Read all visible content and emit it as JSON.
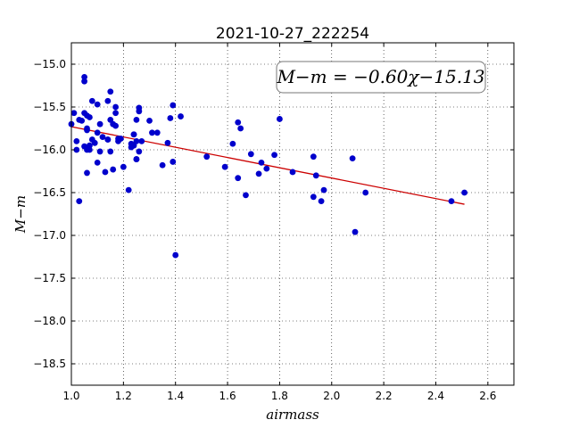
{
  "chart_data": {
    "type": "scatter",
    "title": "2021-10-27_222254",
    "xlabel": "airmass",
    "ylabel": "M−m",
    "xlim": [
      1.0,
      2.7
    ],
    "ylim": [
      -18.75,
      -14.75
    ],
    "y_inverted": true,
    "grid": true,
    "xticks": [
      "1.0",
      "1.2",
      "1.4",
      "1.6",
      "1.8",
      "2.0",
      "2.2",
      "2.4",
      "2.6"
    ],
    "yticks": [
      "−15.0",
      "−15.5",
      "−16.0",
      "−16.5",
      "−17.0",
      "−17.5",
      "−18.0",
      "−18.5"
    ],
    "annotation": "M−m = −0.60χ−15.13",
    "fit": {
      "slope": -0.6,
      "intercept": -15.13,
      "x_range": [
        1.0,
        2.51
      ],
      "color": "#cc0000"
    },
    "point_color": "#0000cc",
    "series": [
      {
        "x": [
          1.0,
          1.01,
          1.02,
          1.02,
          1.03,
          1.03,
          1.04,
          1.05,
          1.05,
          1.05,
          1.05,
          1.06,
          1.06,
          1.06,
          1.06,
          1.06,
          1.07,
          1.07,
          1.07,
          1.08,
          1.08,
          1.09,
          1.1,
          1.1,
          1.1,
          1.11,
          1.11,
          1.12,
          1.13,
          1.14,
          1.14,
          1.14,
          1.15,
          1.15,
          1.15,
          1.16,
          1.16,
          1.17,
          1.17,
          1.17,
          1.18,
          1.18,
          1.19,
          1.2,
          1.22,
          1.23,
          1.23,
          1.24,
          1.24,
          1.24,
          1.25,
          1.25,
          1.25,
          1.25,
          1.26,
          1.26,
          1.26,
          1.27,
          1.3,
          1.31,
          1.33,
          1.35,
          1.37,
          1.38,
          1.39,
          1.39,
          1.4,
          1.42,
          1.52,
          1.59,
          1.62,
          1.64,
          1.64,
          1.65,
          1.67,
          1.69,
          1.72,
          1.73,
          1.75,
          1.78,
          1.8,
          1.85,
          1.93,
          1.93,
          1.94,
          1.96,
          1.97,
          2.08,
          2.09,
          2.13,
          2.46,
          2.51
        ],
        "y": [
          -15.7,
          -15.57,
          -15.9,
          -16.0,
          -16.6,
          -15.65,
          -15.66,
          -15.15,
          -15.2,
          -15.57,
          -15.96,
          -15.6,
          -16.0,
          -16.27,
          -15.75,
          -15.77,
          -15.62,
          -15.95,
          -16.0,
          -15.43,
          -15.88,
          -15.92,
          -15.8,
          -15.47,
          -16.15,
          -16.02,
          -15.7,
          -15.85,
          -16.26,
          -15.43,
          -15.88,
          -15.88,
          -15.32,
          -15.65,
          -16.02,
          -16.23,
          -15.7,
          -15.5,
          -15.57,
          -15.72,
          -15.87,
          -15.9,
          -15.87,
          -16.2,
          -16.47,
          -15.97,
          -15.93,
          -15.82,
          -15.82,
          -15.95,
          -15.9,
          -15.65,
          -16.11,
          -16.11,
          -15.55,
          -15.51,
          -16.02,
          -15.9,
          -15.66,
          -15.8,
          -15.8,
          -16.18,
          -15.92,
          -15.63,
          -15.48,
          -16.14,
          -17.23,
          -15.61,
          -16.08,
          -16.2,
          -15.93,
          -15.68,
          -16.33,
          -15.75,
          -16.53,
          -16.05,
          -16.28,
          -16.15,
          -16.22,
          -16.06,
          -15.64,
          -16.26,
          -16.08,
          -16.55,
          -16.3,
          -16.6,
          -16.47,
          -16.1,
          -16.96,
          -16.5,
          -16.6,
          -16.5
        ]
      }
    ]
  }
}
